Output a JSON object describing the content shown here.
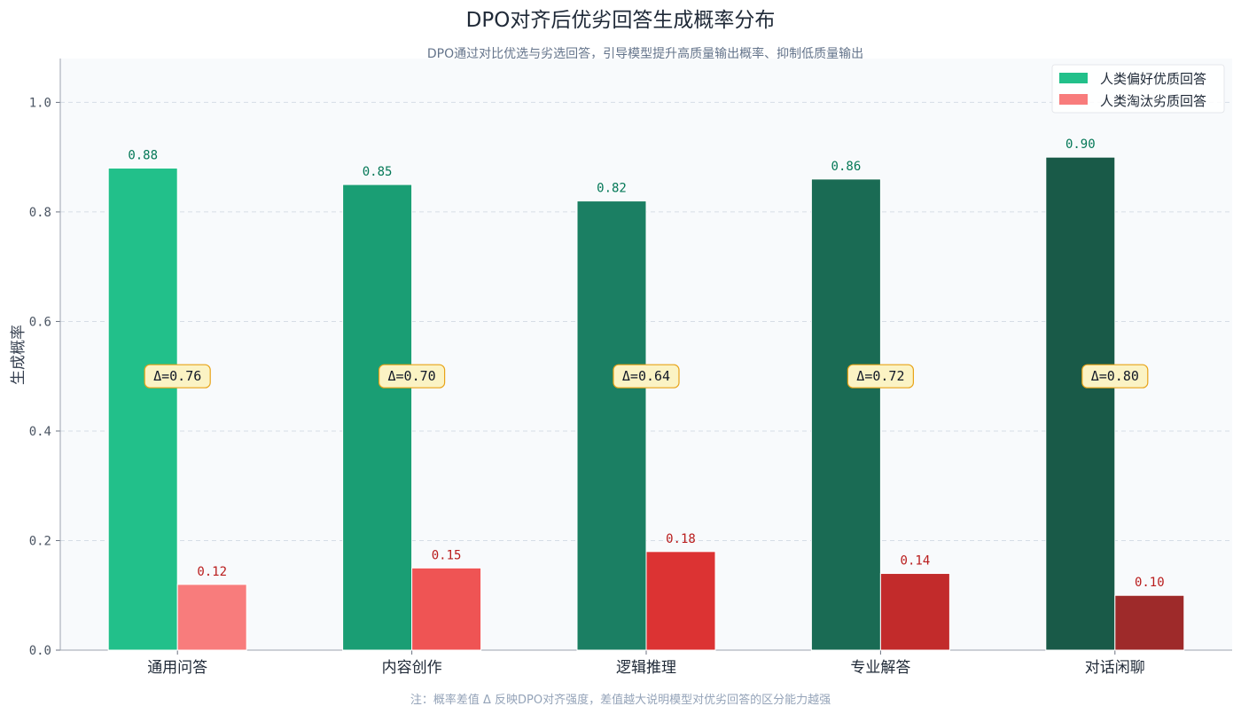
{
  "title": "DPO对齐后优劣回答生成概率分布",
  "subtitle": "DPO通过对比优选与劣选回答，引导模型提升高质量输出概率、抑制低质量输出",
  "note": "注：概率差值 Δ 反映DPO对齐强度，差值越大说明模型对优劣回答的区分能力越强",
  "chart_data": {
    "type": "bar",
    "title": "DPO对齐后优劣回答生成概率分布",
    "subtitle": "DPO通过对比优选与劣选回答，引导模型提升高质量输出概率、抑制低质量输出",
    "xlabel": "",
    "ylabel": "生成概率",
    "ylim": [
      0,
      1.08
    ],
    "yticks": [
      "0.0",
      "0.2",
      "0.4",
      "0.6",
      "0.8",
      "1.0"
    ],
    "grid": true,
    "legend_position": "top-right",
    "categories": [
      "通用问答",
      "内容创作",
      "逻辑推理",
      "专业解答",
      "对话闲聊"
    ],
    "series": [
      {
        "name": "人类偏好优质回答",
        "values": [
          0.88,
          0.85,
          0.82,
          0.86,
          0.9
        ],
        "labels": [
          "0.88",
          "0.85",
          "0.82",
          "0.86",
          "0.90"
        ],
        "colors": [
          "#22c08a",
          "#1a9e74",
          "#1b7f63",
          "#1a6b54",
          "#195a48"
        ],
        "legend_color": "#22c08a",
        "label_color": "#047857"
      },
      {
        "name": "人类淘汰劣质回答",
        "values": [
          0.12,
          0.15,
          0.18,
          0.14,
          0.1
        ],
        "labels": [
          "0.12",
          "0.15",
          "0.18",
          "0.14",
          "0.10"
        ],
        "colors": [
          "#f87c7c",
          "#ef5454",
          "#dc3333",
          "#c22b2b",
          "#9e2a2a"
        ],
        "legend_color": "#f87c7c",
        "label_color": "#b91c1c"
      }
    ],
    "annotations": {
      "delta_labels": [
        "Δ=0.76",
        "Δ=0.70",
        "Δ=0.64",
        "Δ=0.72",
        "Δ=0.80"
      ],
      "delta_y": 0.5,
      "box_fill": "#fbf3c4",
      "box_stroke": "#e8a317"
    }
  }
}
